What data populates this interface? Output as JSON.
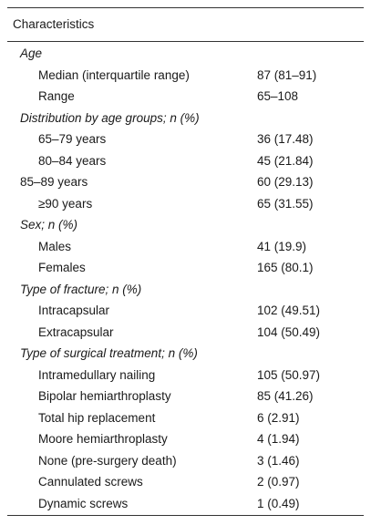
{
  "table": {
    "header": "Characteristics",
    "sections": [
      {
        "title": "Age",
        "items": [
          {
            "label": "Median (interquartile range)",
            "value": "87 (81–91)"
          },
          {
            "label": "Range",
            "value": "65–108"
          }
        ]
      },
      {
        "title": "Distribution by age groups; n (%)",
        "items": [
          {
            "label": "65–79 years",
            "value": "36 (17.48)"
          },
          {
            "label": "80–84 years",
            "value": "45 (21.84)"
          },
          {
            "label": "85–89 years",
            "value": "60 (29.13)",
            "indent": false
          },
          {
            "label": "≥90 years",
            "value": "65 (31.55)"
          }
        ]
      },
      {
        "title": "Sex; n (%)",
        "items": [
          {
            "label": "Males",
            "value": "41 (19.9)"
          },
          {
            "label": "Females",
            "value": "165 (80.1)"
          }
        ]
      },
      {
        "title": "Type of fracture; n (%)",
        "items": [
          {
            "label": "Intracapsular",
            "value": "102 (49.51)"
          },
          {
            "label": "Extracapsular",
            "value": "104 (50.49)"
          }
        ]
      },
      {
        "title": "Type of surgical treatment; n (%)",
        "items": [
          {
            "label": "Intramedullary nailing",
            "value": "105 (50.97)"
          },
          {
            "label": "Bipolar hemiarthroplasty",
            "value": "85 (41.26)"
          },
          {
            "label": "Total hip replacement",
            "value": "6 (2.91)"
          },
          {
            "label": "Moore hemiarthroplasty",
            "value": "4 (1.94)"
          },
          {
            "label": "None (pre-surgery death)",
            "value": "3 (1.46)"
          },
          {
            "label": "Cannulated screws",
            "value": "2 (0.97)"
          },
          {
            "label": "Dynamic screws",
            "value": "1 (0.49)"
          }
        ]
      }
    ]
  }
}
